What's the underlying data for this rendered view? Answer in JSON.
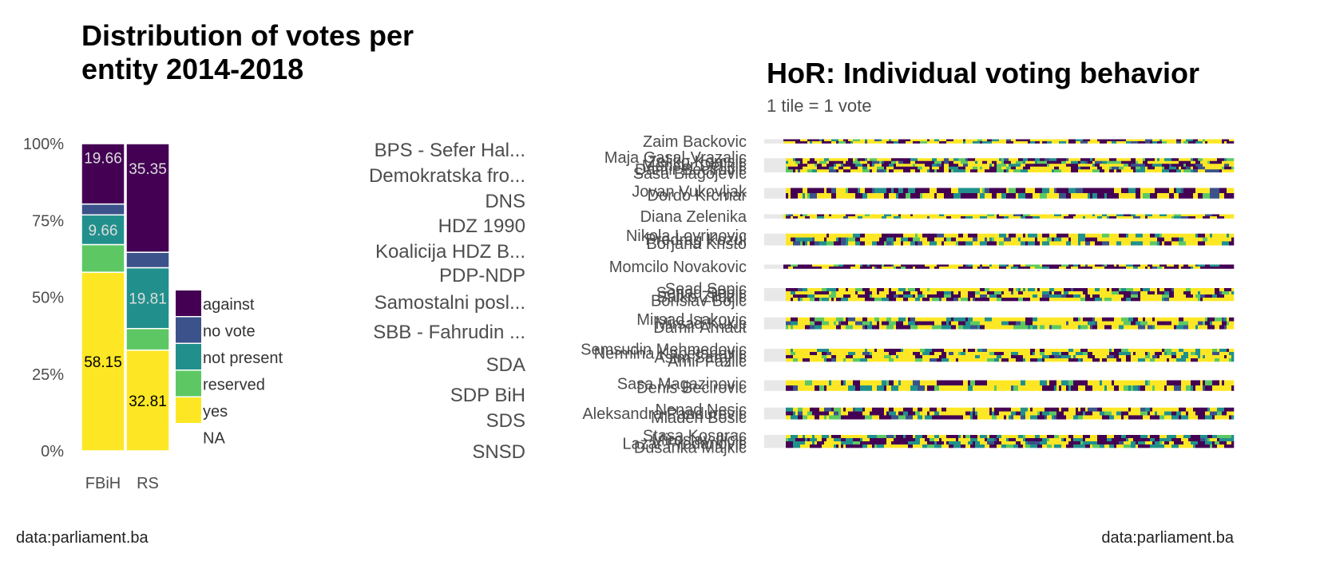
{
  "colors": {
    "against": "#440154",
    "no vote": "#3b528b",
    "not present": "#21908c",
    "reserved": "#5dc863",
    "yes": "#fde725",
    "NA": "#e8e8e8"
  },
  "left_panel": {
    "title_line1": "Distribution of votes per",
    "title_line2": "entity 2014-2018",
    "caption": "data:parliament.ba"
  },
  "right_panel": {
    "title": "HoR: Individual voting behavior",
    "subtitle": "1 tile = 1 vote",
    "caption": "data:parliament.ba"
  },
  "chart_data": [
    {
      "type": "bar",
      "stacked": true,
      "normalized": true,
      "title": "Distribution of votes per entity 2014-2018",
      "categories": [
        "FBiH",
        "RS"
      ],
      "y_ticks": [
        "0%",
        "25%",
        "50%",
        "75%",
        "100%"
      ],
      "ylim": [
        0,
        100
      ],
      "legend": [
        "against",
        "no vote",
        "not present",
        "reserved",
        "yes",
        "NA"
      ],
      "legend_position": "right",
      "series": [
        {
          "name": "yes",
          "values": [
            58.15,
            32.81
          ],
          "labels": [
            "58.15",
            "32.81"
          ]
        },
        {
          "name": "reserved",
          "values": [
            9.0,
            7.0
          ],
          "labels": [
            "",
            ""
          ]
        },
        {
          "name": "not present",
          "values": [
            9.66,
            19.81
          ],
          "labels": [
            "9.66",
            "19.81"
          ]
        },
        {
          "name": "no vote",
          "values": [
            3.53,
            5.03
          ],
          "labels": [
            "",
            ""
          ]
        },
        {
          "name": "against",
          "values": [
            19.66,
            35.35
          ],
          "labels": [
            "19.66",
            "35.35"
          ]
        }
      ]
    },
    {
      "type": "heatmap",
      "title": "HoR: Individual voting behavior",
      "subtitle": "1 tile = 1 vote",
      "parties": [
        "BPS - Sefer Hal...",
        "Demokratska fro...",
        "DNS",
        "HDZ 1990",
        "Koalicija HDZ B...",
        "PDP-NDP",
        "Samostalni posl...",
        "SBB - Fahrudin ...",
        "SDA",
        "SDP BiH",
        "SDS",
        "SNSD"
      ],
      "groups": [
        {
          "members": [
            "Zaim Backovic"
          ],
          "composition": {
            "yes": 0.55,
            "against": 0.2,
            "not present": 0.15,
            "reserved": 0.05,
            "no vote": 0.05
          }
        },
        {
          "members": [
            "Maja Gasal-Vrazalic",
            "Zeljko Komsic",
            "Mensur Deljkic",
            "Damir Becirovic",
            "Sasa Blagojevic"
          ],
          "composition": {
            "yes": 0.42,
            "against": 0.3,
            "not present": 0.14,
            "reserved": 0.08,
            "no vote": 0.06
          }
        },
        {
          "members": [
            "Jovan Vukovljak",
            "Dordo Krcmar"
          ],
          "composition": {
            "yes": 0.35,
            "against": 0.42,
            "not present": 0.13,
            "reserved": 0.05,
            "no vote": 0.05
          }
        },
        {
          "members": [
            "Diana Zelenika"
          ],
          "composition": {
            "yes": 0.6,
            "against": 0.18,
            "not present": 0.14,
            "reserved": 0.05,
            "no vote": 0.03
          }
        },
        {
          "members": [
            "Nikola Lovrinovic",
            "Predrag Kozul",
            "Borjana Kristo"
          ],
          "composition": {
            "yes": 0.55,
            "against": 0.22,
            "not present": 0.14,
            "reserved": 0.05,
            "no vote": 0.04
          }
        },
        {
          "members": [
            "Momcilo Novakovic"
          ],
          "composition": {
            "yes": 0.32,
            "against": 0.48,
            "not present": 0.12,
            "reserved": 0.04,
            "no vote": 0.04
          }
        },
        {
          "members": [
            "Sead Sepic",
            "Senad Sepic",
            "Salko Zildzic",
            "Borislav Bojic"
          ],
          "composition": {
            "yes": 0.45,
            "against": 0.3,
            "not present": 0.12,
            "reserved": 0.08,
            "no vote": 0.05
          }
        },
        {
          "members": [
            "Mirsad Isakovic",
            "Mirsad Kukic",
            "Damir Arnaut"
          ],
          "composition": {
            "yes": 0.45,
            "against": 0.24,
            "not present": 0.13,
            "reserved": 0.12,
            "no vote": 0.06
          }
        },
        {
          "members": [
            "Semsudin Mehmedovic",
            "Nermina Kapetanovic",
            "Asim Sarajlic",
            "Amir Fazlic"
          ],
          "composition": {
            "yes": 0.56,
            "against": 0.2,
            "not present": 0.12,
            "reserved": 0.08,
            "no vote": 0.04
          }
        },
        {
          "members": [
            "Sasa Magazinovic",
            "Denis Becirovic"
          ],
          "composition": {
            "yes": 0.58,
            "against": 0.2,
            "not present": 0.11,
            "reserved": 0.07,
            "no vote": 0.04
          }
        },
        {
          "members": [
            "Nenad Nesic",
            "Aleksandra Pandurevic",
            "Mladen Bosic"
          ],
          "composition": {
            "yes": 0.36,
            "against": 0.4,
            "not present": 0.14,
            "reserved": 0.05,
            "no vote": 0.05
          }
        },
        {
          "members": [
            "Stasa Kosarac",
            "Miroslav Ilicic",
            "Lazar Prodanovic",
            "Dusanka Majkic"
          ],
          "composition": {
            "yes": 0.26,
            "against": 0.36,
            "not present": 0.28,
            "reserved": 0.06,
            "no vote": 0.04
          }
        }
      ]
    }
  ]
}
